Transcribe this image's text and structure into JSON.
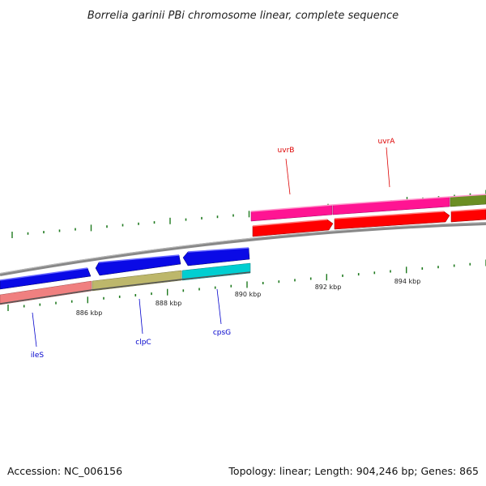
{
  "title": "Borrelia garinii PBi chromosome linear, complete sequence",
  "footer": {
    "accession": "Accession: NC_006156",
    "summary": "Topology: linear; Length: 904,246 bp; Genes: 865"
  },
  "colors": {
    "backbone": "#888888",
    "tick": "#1f7a1f",
    "blue": "#0a0ae6",
    "salmon": "#f08080",
    "khaki": "#bdb76b",
    "cyan": "#00ced1",
    "magenta": "#ff1493",
    "red": "#ff0000",
    "olive": "#6b8e23",
    "label_blue": "#0000cc",
    "label_red": "#dd0000"
  },
  "map": {
    "ticks": [
      {
        "label": "886 kbp"
      },
      {
        "label": "888 kbp"
      },
      {
        "label": "890 kbp"
      },
      {
        "label": "892 kbp"
      },
      {
        "label": "894 kbp"
      }
    ],
    "genes": [
      {
        "name": "ileS",
        "color": "salmon",
        "strand": "minus",
        "labeled": true
      },
      {
        "name": "clpC",
        "color": "khaki",
        "strand": "minus",
        "labeled": true
      },
      {
        "name": "cpsG",
        "color": "cyan",
        "strand": "minus",
        "labeled": true
      },
      {
        "name": "uvrB",
        "color": "magenta",
        "strand": "plus",
        "labeled": true
      },
      {
        "name": "uvrA",
        "color": "magenta",
        "strand": "plus",
        "labeled": true
      },
      {
        "name": "",
        "color": "olive",
        "strand": "plus",
        "labeled": false
      }
    ]
  }
}
